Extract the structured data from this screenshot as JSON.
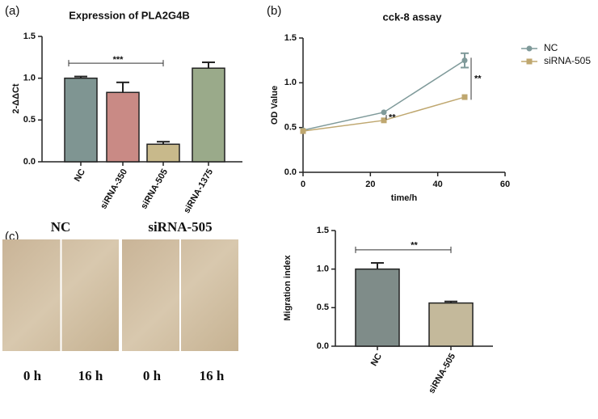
{
  "panel_labels": [
    "(a)",
    "(b)",
    "(c)"
  ],
  "images": {
    "labels": [
      "NC",
      "siRNA-505"
    ],
    "time_labels": [
      "0 h",
      "16 h",
      "0 h",
      "16 h"
    ]
  },
  "chart_data": [
    {
      "type": "bar",
      "title": "Expression of PLA2G4B",
      "y_label": "2-ΔΔCt",
      "categories": [
        "NC",
        "siRNA-350",
        "siRNA-505",
        "siRNA-1375"
      ],
      "values": [
        1.0,
        0.83,
        0.21,
        1.12
      ],
      "errors": [
        0.02,
        0.12,
        0.03,
        0.07
      ],
      "colors": [
        "#7f9592",
        "#c98a85",
        "#c8b98b",
        "#9aaa8a"
      ],
      "ylim": [
        0,
        1.5
      ],
      "yticks": [
        {
          "value": 0,
          "label": "0.0"
        },
        0.5,
        {
          "value": 1,
          "label": "1.0"
        },
        {
          "value": 1.5,
          "label": "1.5"
        }
      ],
      "annotations": [
        "***"
      ]
    },
    {
      "type": "line",
      "title": "cck-8 assay",
      "x_label": "time/h",
      "y_label": "OD Value",
      "x": [
        0,
        24,
        48
      ],
      "series": [
        {
          "name": "NC",
          "color": "#7f9a9a",
          "marker": "circle",
          "values": [
            0.47,
            0.67,
            1.25
          ],
          "errors": [
            0.01,
            0.01,
            0.08
          ]
        },
        {
          "name": "siRNA-505",
          "color": "#bfa76f",
          "marker": "square",
          "values": [
            0.46,
            0.58,
            0.84
          ],
          "errors": [
            0.01,
            0.01,
            0.01
          ]
        }
      ],
      "xlim": [
        0,
        60
      ],
      "xticks": [
        0,
        20,
        40,
        60
      ],
      "ylim": [
        0,
        1.5
      ],
      "yticks": [
        {
          "value": 0,
          "label": "0.0"
        },
        0.5,
        {
          "value": 1,
          "label": "1.0"
        },
        {
          "value": 1.5,
          "label": "1.5"
        }
      ],
      "legend": "outside-right",
      "annotations": [
        "**",
        "**"
      ]
    },
    {
      "type": "bar",
      "y_label": "Migration index",
      "categories": [
        "NC",
        "siRNA-505"
      ],
      "values": [
        1.0,
        0.56
      ],
      "errors": [
        0.08,
        0.02
      ],
      "colors": [
        "#7f8c89",
        "#c4b99b"
      ],
      "ylim": [
        0,
        1.5
      ],
      "yticks": [
        {
          "value": 0,
          "label": "0.0"
        },
        0.5,
        {
          "value": 1,
          "label": "1.0"
        },
        {
          "value": 1.5,
          "label": "1.5"
        }
      ],
      "annotations": [
        "**"
      ]
    }
  ]
}
